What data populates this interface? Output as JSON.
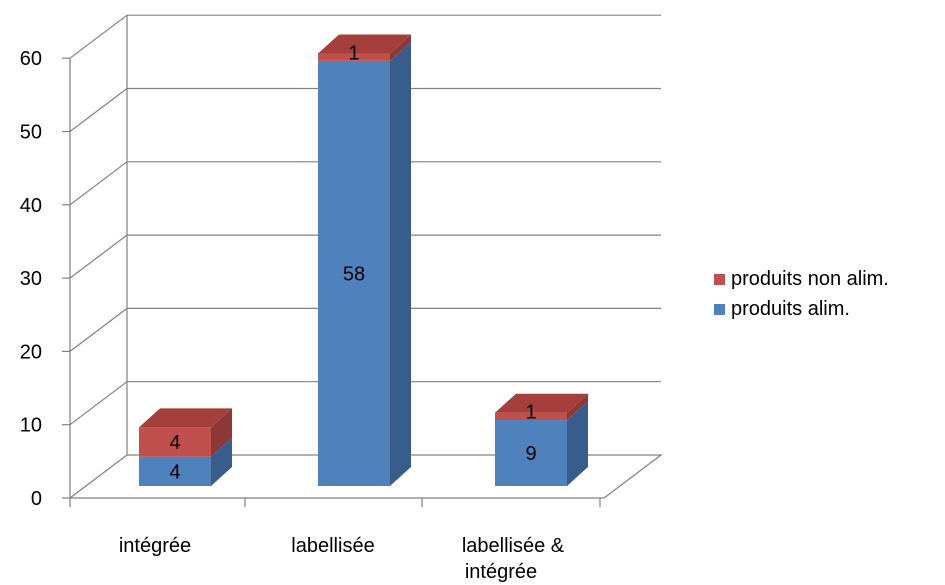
{
  "chart_data": {
    "type": "bar",
    "stacked": true,
    "three_d": true,
    "categories": [
      "intégrée",
      "labellisée",
      "labellisée & intégrée"
    ],
    "series": [
      {
        "name": "produits alim.",
        "values": [
          4,
          58,
          9
        ],
        "color": "#4F81BD",
        "side_color": "#385D8A",
        "top_color": "#6A94C8"
      },
      {
        "name": "produits non alim.",
        "values": [
          4,
          1,
          1
        ],
        "color": "#C0504D",
        "side_color": "#8C3836",
        "top_color": "#A53F3C"
      }
    ],
    "ylim": [
      0,
      60
    ],
    "yticks": [
      0,
      10,
      20,
      30,
      40,
      50,
      60
    ],
    "grid": true,
    "legend_position": "right",
    "title": "",
    "xlabel": "",
    "ylabel": ""
  }
}
